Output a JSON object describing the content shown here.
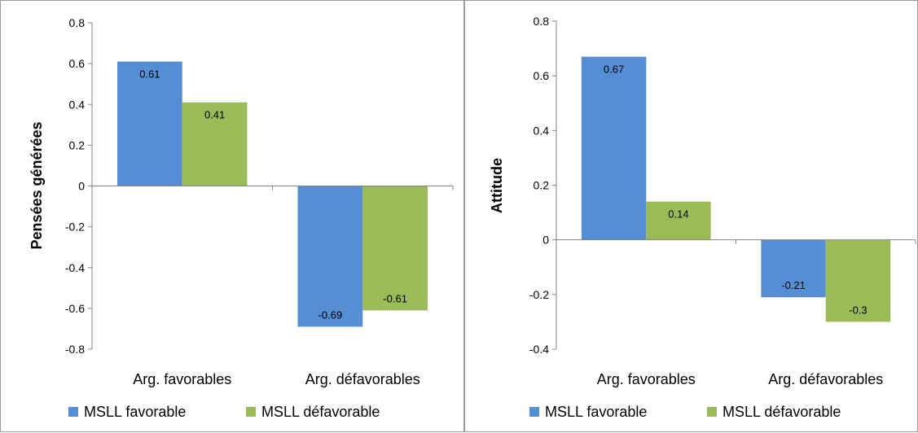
{
  "colors": {
    "series1": "#558ed5",
    "series2": "#9bbb59",
    "axis": "#868686"
  },
  "chart_data": [
    {
      "type": "bar",
      "ylabel": "Pensées générées",
      "xlabel": "",
      "title": "",
      "ylim": [
        -0.8,
        0.8
      ],
      "yticks": [
        0.8,
        0.6,
        0.4,
        0.2,
        0,
        -0.2,
        -0.4,
        -0.6,
        -0.8
      ],
      "ytick_labels": [
        "0.8",
        "0.6",
        "0.4",
        "0.2",
        "0",
        "-0.2",
        "-0.4",
        "-0.6",
        "-0.8"
      ],
      "categories": [
        "Arg. favorables",
        "Arg. défavorables"
      ],
      "series": [
        {
          "name": "MSLL favorable",
          "values": [
            0.61,
            -0.69
          ],
          "labels": [
            "0.61",
            "-0.69"
          ]
        },
        {
          "name": "MSLL défavorable",
          "values": [
            0.41,
            -0.61
          ],
          "labels": [
            "0.41",
            "-0.61"
          ]
        }
      ],
      "legend": "bottom",
      "grid": false
    },
    {
      "type": "bar",
      "ylabel": "Attitude",
      "xlabel": "",
      "title": "",
      "ylim": [
        -0.4,
        0.8
      ],
      "yticks": [
        0.8,
        0.6,
        0.4,
        0.2,
        0,
        -0.2,
        -0.4
      ],
      "ytick_labels": [
        "0.8",
        "0.6",
        "0.4",
        "0.2",
        "0",
        "-0.2",
        "-0.4"
      ],
      "categories": [
        "Arg. favorables",
        "Arg. défavorables"
      ],
      "series": [
        {
          "name": "MSLL favorable",
          "values": [
            0.67,
            -0.21
          ],
          "labels": [
            "0.67",
            "-0.21"
          ]
        },
        {
          "name": "MSLL défavorable",
          "values": [
            0.14,
            -0.3
          ],
          "labels": [
            "0.14",
            "-0.3"
          ]
        }
      ],
      "legend": "bottom",
      "grid": false
    }
  ]
}
